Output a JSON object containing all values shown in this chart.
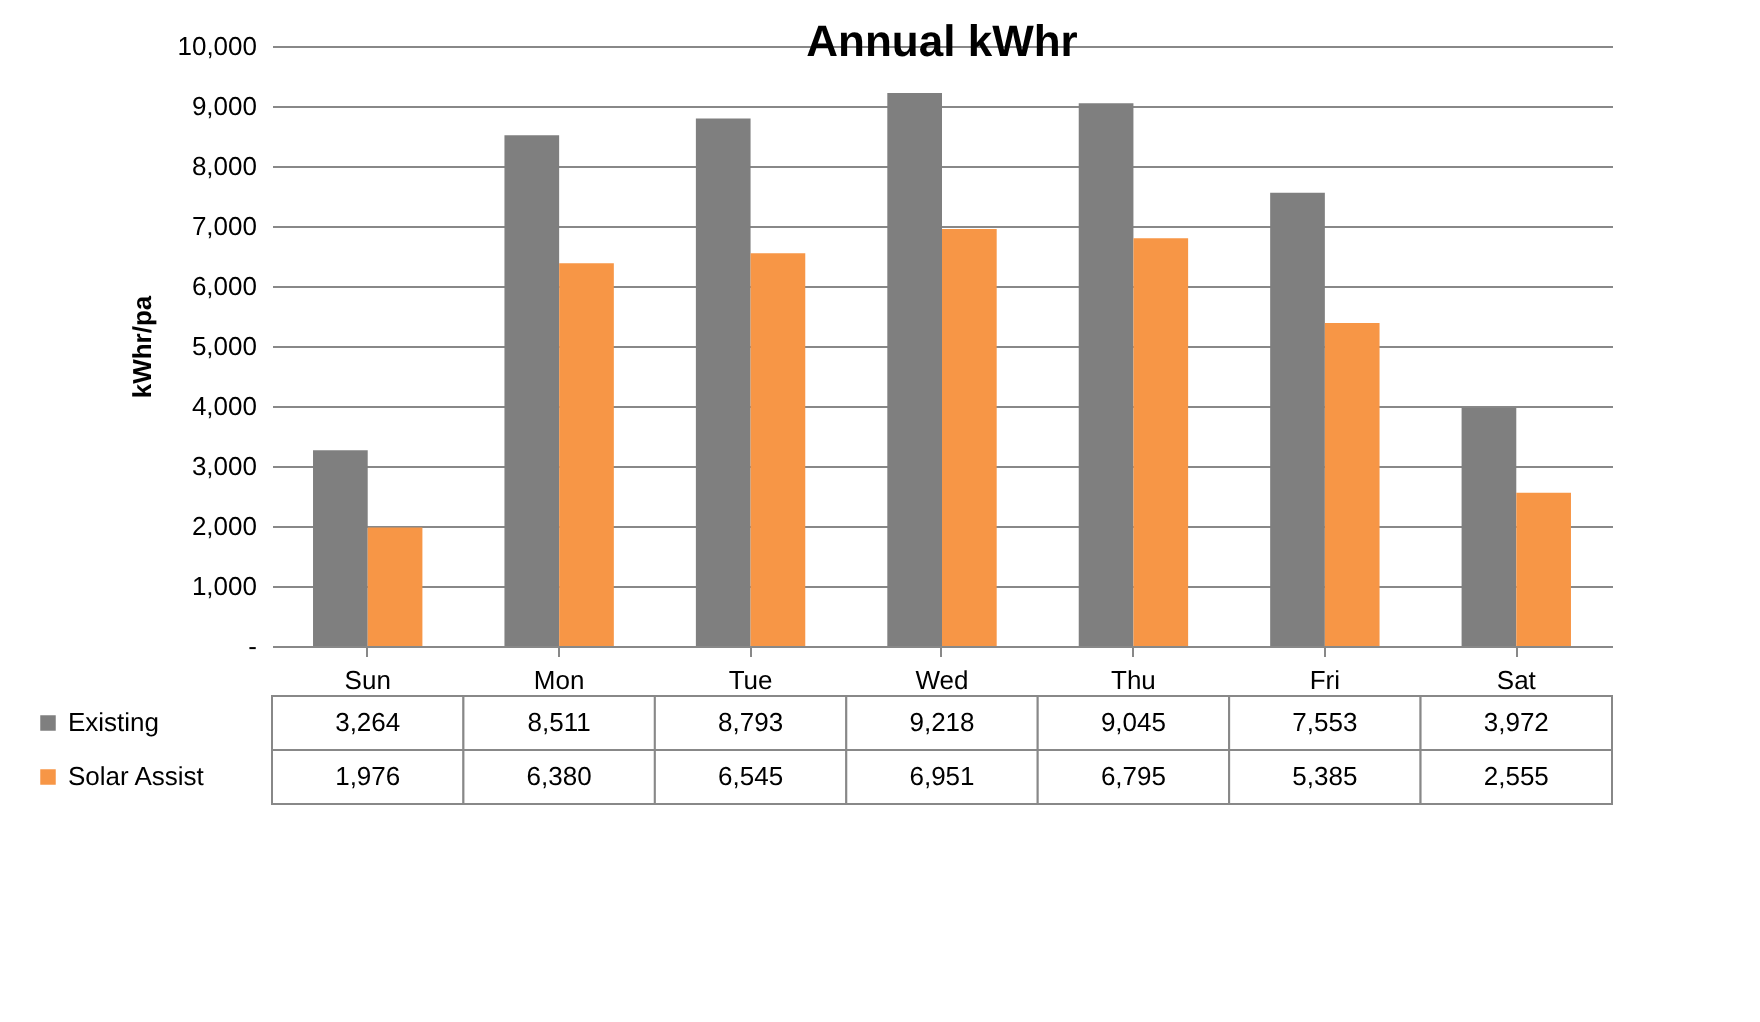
{
  "chart_data": {
    "type": "bar",
    "title": "Annual kWhr",
    "ylabel": "kWhr/pa",
    "categories": [
      "Sun",
      "Mon",
      "Tue",
      "Wed",
      "Thu",
      "Fri",
      "Sat"
    ],
    "series": [
      {
        "name": "Existing",
        "color": "#7f7f7f",
        "values": [
          3264,
          8511,
          8793,
          9218,
          9045,
          7553,
          3972
        ],
        "value_labels": [
          "3,264",
          "8,511",
          "8,793",
          "9,218",
          "9,045",
          "7,553",
          "3,972"
        ]
      },
      {
        "name": "Solar Assist",
        "color": "#f79646",
        "values": [
          1976,
          6380,
          6545,
          6951,
          6795,
          5385,
          2555
        ],
        "value_labels": [
          "1,976",
          "6,380",
          "6,545",
          "6,951",
          "6,795",
          "5,385",
          "2,555"
        ]
      }
    ],
    "ylim": [
      0,
      10000
    ],
    "yticks": [
      {
        "value": 0,
        "label": "-"
      },
      {
        "value": 1000,
        "label": "1,000"
      },
      {
        "value": 2000,
        "label": "2,000"
      },
      {
        "value": 3000,
        "label": "3,000"
      },
      {
        "value": 4000,
        "label": "4,000"
      },
      {
        "value": 5000,
        "label": "5,000"
      },
      {
        "value": 6000,
        "label": "6,000"
      },
      {
        "value": 7000,
        "label": "7,000"
      },
      {
        "value": 8000,
        "label": "8,000"
      },
      {
        "value": 9000,
        "label": "9,000"
      },
      {
        "value": 10000,
        "label": "10,000"
      }
    ],
    "grid": "y",
    "legend": "bottom"
  }
}
